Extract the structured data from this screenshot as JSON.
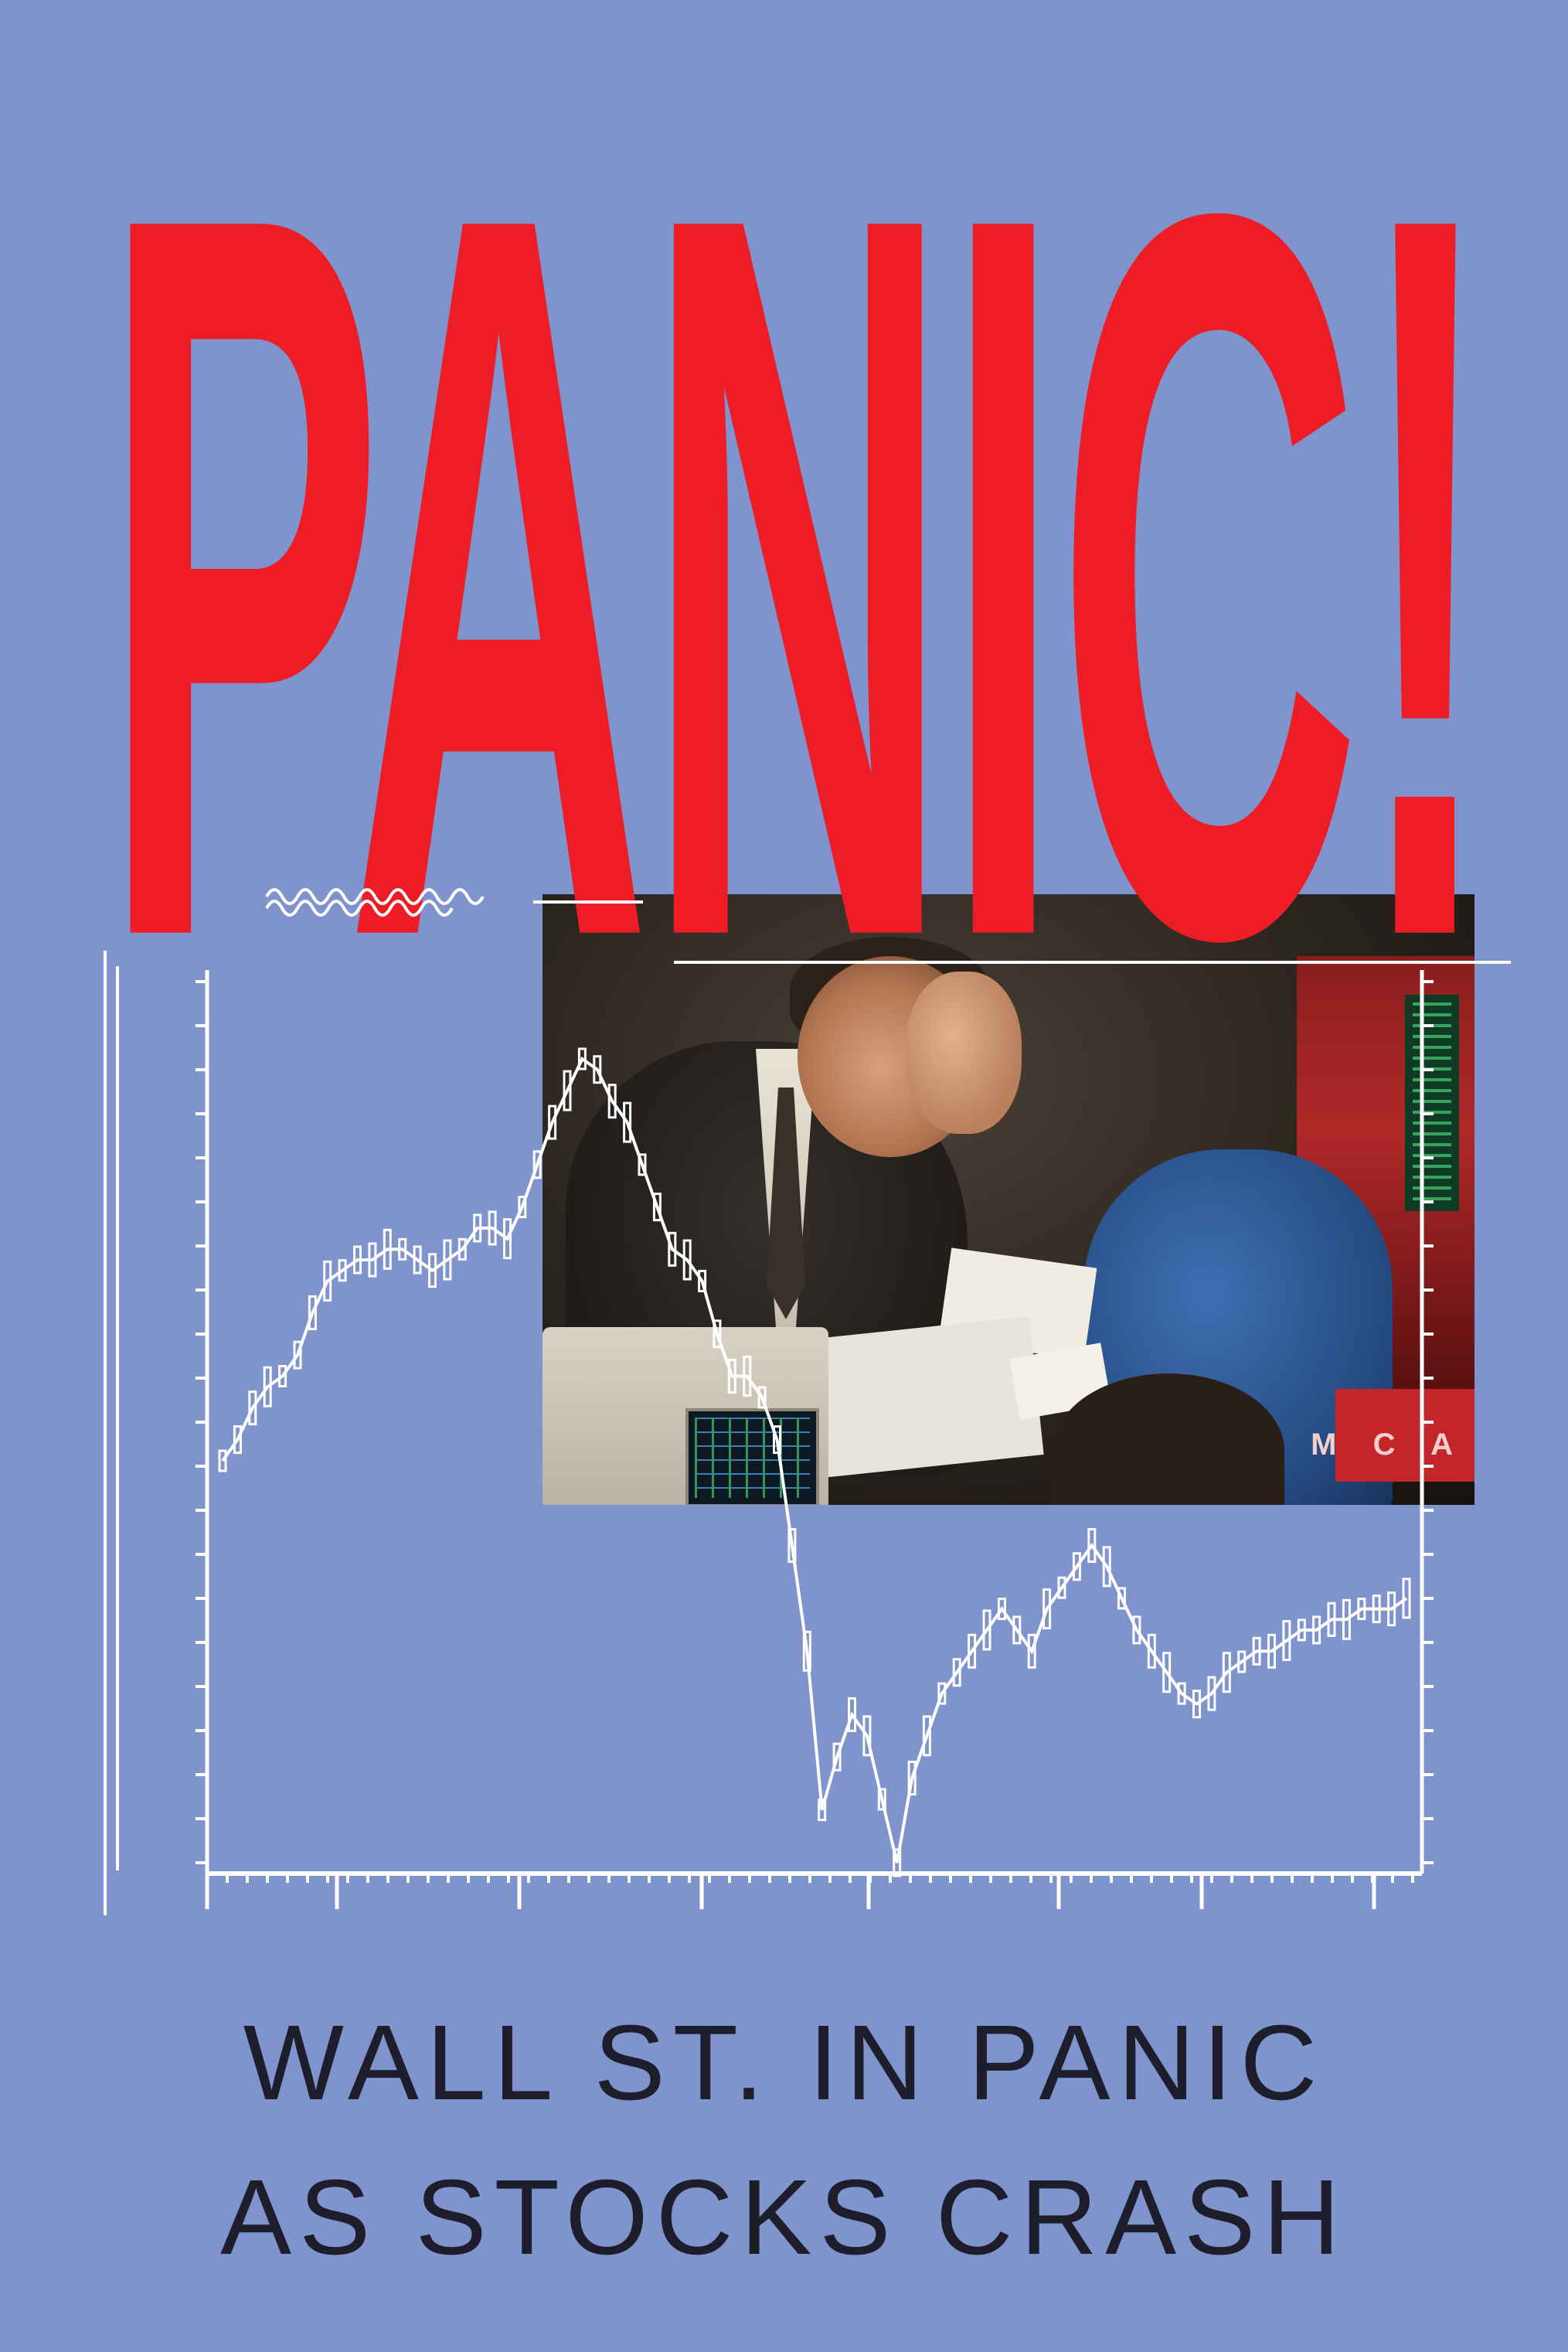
{
  "poster": {
    "headline": "PANIC!",
    "subheadline_line1": "WALL ST. IN PANIC",
    "subheadline_line2": "AS STOCKS CRASH",
    "photo_sign_text": "M C A",
    "colors": {
      "background": "#7f93cc",
      "headline": "#ee1c25",
      "subheadline": "#1d1d2b",
      "chart_lines": "#ffffff"
    },
    "photo_description_icon": "trader-photo"
  },
  "chart_data": {
    "type": "line",
    "title": "",
    "xlabel": "",
    "ylabel": "",
    "grid": false,
    "legend": "none",
    "x": [
      0,
      1,
      2,
      3,
      4,
      5,
      6,
      7,
      8,
      9,
      10,
      11,
      12,
      13,
      14,
      15,
      16,
      17,
      18,
      19,
      20,
      21,
      22,
      23,
      24,
      25,
      26,
      27,
      28,
      29,
      30,
      31,
      32,
      33,
      34,
      35,
      36,
      37,
      38,
      39,
      40,
      41,
      42,
      43,
      44,
      45,
      46,
      47,
      48,
      49,
      50,
      51,
      52,
      53,
      54,
      55,
      56,
      57,
      58,
      59,
      60,
      61,
      62,
      63,
      64,
      65,
      66,
      67,
      68,
      69,
      70,
      71,
      72,
      73,
      74,
      75,
      76,
      77,
      78,
      79
    ],
    "series": [
      {
        "values": [
          38,
          40,
          43,
          45,
          46,
          48,
          52,
          55,
          56,
          57,
          57,
          58,
          58,
          57,
          56,
          57,
          58,
          60,
          60,
          59,
          62,
          66,
          70,
          73,
          76,
          75,
          72,
          70,
          66,
          62,
          58,
          57,
          55,
          50,
          46,
          46,
          44,
          40,
          30,
          20,
          5,
          10,
          14,
          12,
          6,
          0,
          8,
          12,
          16,
          18,
          20,
          22,
          24,
          22,
          20,
          24,
          26,
          28,
          30,
          28,
          25,
          22,
          20,
          18,
          16,
          15,
          16,
          18,
          19,
          20,
          20,
          21,
          22,
          22,
          23,
          23,
          24,
          24,
          24,
          25
        ]
      }
    ]
  }
}
